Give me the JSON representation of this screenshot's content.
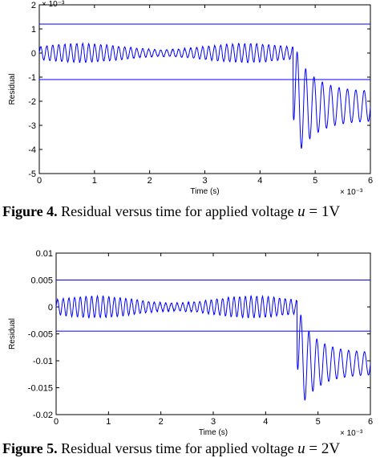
{
  "chart_data": [
    {
      "type": "line",
      "title": "",
      "xlabel": "Time (s)",
      "ylabel": "Residual",
      "x_exponent": "× 10⁻³",
      "y_exponent": "× 10⁻³",
      "xlim": [
        0,
        6
      ],
      "ylim": [
        -5,
        2
      ],
      "xticks": [
        "0",
        "1",
        "2",
        "3",
        "4",
        "5",
        "6"
      ],
      "yticks": [
        "2",
        "1",
        "0",
        "-1",
        "-2",
        "-3",
        "-4",
        "-5"
      ],
      "thresholds": [
        1.2,
        -1.1
      ],
      "fault_time": 4.6,
      "pre_fault_amplitude": 0.35,
      "post_fault_peak": -4.0,
      "post_fault_settle": -2.2,
      "post_fault_settle_amplitude": 0.6,
      "line_color": "#0000ff",
      "caption": {
        "label": "Figure 4.",
        "text": " Residual versus time for applied voltage ",
        "math_var": "u",
        "math_value": " = 1V"
      }
    },
    {
      "type": "line",
      "title": "",
      "xlabel": "Time (s)",
      "ylabel": "Residual",
      "x_exponent": "× 10⁻³",
      "y_exponent": "",
      "xlim": [
        0,
        6
      ],
      "ylim": [
        -0.02,
        0.01
      ],
      "xticks": [
        "0",
        "1",
        "2",
        "3",
        "4",
        "5",
        "6"
      ],
      "yticks": [
        "0.01",
        "0.005",
        "0",
        "-0.005",
        "-0.01",
        "-0.015",
        "-0.02"
      ],
      "thresholds": [
        0.005,
        -0.0045
      ],
      "fault_time": 4.6,
      "pre_fault_amplitude": 0.0018,
      "post_fault_peak": -0.018,
      "post_fault_settle": -0.0105,
      "post_fault_settle_amplitude": 0.002,
      "line_color": "#0000ff",
      "caption": {
        "label": "Figure 5.",
        "text": " Residual versus time for applied voltage ",
        "math_var": "u",
        "math_value": " = 2V"
      }
    }
  ]
}
